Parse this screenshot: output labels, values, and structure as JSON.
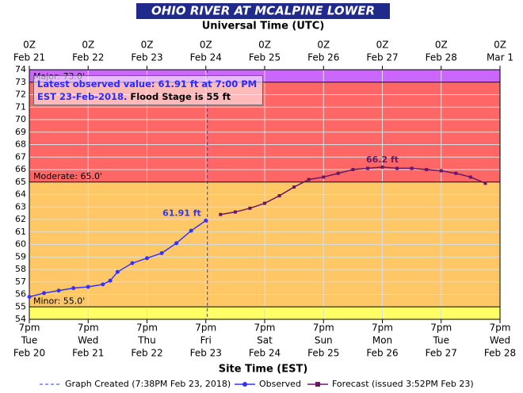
{
  "chart_data": {
    "type": "line",
    "title": "OHIO RIVER AT MCALPINE LOWER",
    "x2label": "Universal Time (UTC)",
    "xlabel": "Site Time (EST)",
    "xlim": [
      "2018-02-20T19:00",
      "2018-02-28T19:00"
    ],
    "xticks": [
      {
        "value": "2018-02-20T19:00",
        "label": [
          "7pm",
          "Tue",
          "Feb 20"
        ]
      },
      {
        "value": "2018-02-21T19:00",
        "label": [
          "7pm",
          "Wed",
          "Feb 21"
        ]
      },
      {
        "value": "2018-02-22T19:00",
        "label": [
          "7pm",
          "Thu",
          "Feb 22"
        ]
      },
      {
        "value": "2018-02-23T19:00",
        "label": [
          "7pm",
          "Fri",
          "Feb 23"
        ]
      },
      {
        "value": "2018-02-24T19:00",
        "label": [
          "7pm",
          "Sat",
          "Feb 24"
        ]
      },
      {
        "value": "2018-02-25T19:00",
        "label": [
          "7pm",
          "Sun",
          "Feb 25"
        ]
      },
      {
        "value": "2018-02-26T19:00",
        "label": [
          "7pm",
          "Mon",
          "Feb 26"
        ]
      },
      {
        "value": "2018-02-27T19:00",
        "label": [
          "7pm",
          "Tue",
          "Feb 27"
        ]
      },
      {
        "value": "2018-02-28T19:00",
        "label": [
          "7pm",
          "Wed",
          "Feb 28"
        ]
      }
    ],
    "x2ticks": [
      {
        "value": "2018-02-20T19:00",
        "label": [
          "0Z",
          "Feb 21"
        ]
      },
      {
        "value": "2018-02-21T19:00",
        "label": [
          "0Z",
          "Feb 22"
        ]
      },
      {
        "value": "2018-02-22T19:00",
        "label": [
          "0Z",
          "Feb 23"
        ]
      },
      {
        "value": "2018-02-23T19:00",
        "label": [
          "0Z",
          "Feb 24"
        ]
      },
      {
        "value": "2018-02-24T19:00",
        "label": [
          "0Z",
          "Feb 25"
        ]
      },
      {
        "value": "2018-02-25T19:00",
        "label": [
          "0Z",
          "Feb 26"
        ]
      },
      {
        "value": "2018-02-26T19:00",
        "label": [
          "0Z",
          "Feb 27"
        ]
      },
      {
        "value": "2018-02-27T19:00",
        "label": [
          "0Z",
          "Feb 28"
        ]
      },
      {
        "value": "2018-02-28T19:00",
        "label": [
          "0Z",
          "Mar 1"
        ]
      }
    ],
    "ylim": [
      54,
      74
    ],
    "yticks": [
      54,
      55,
      56,
      57,
      58,
      59,
      60,
      61,
      62,
      63,
      64,
      65,
      66,
      67,
      68,
      69,
      70,
      71,
      72,
      73,
      74
    ],
    "grid": true,
    "below_color": "#ffff66",
    "flood_categories": [
      {
        "label": "Minor: 55.0'",
        "value": 55,
        "color": "#ffc766"
      },
      {
        "label": "Moderate: 65.0'",
        "value": 65,
        "color": "#ff6666"
      },
      {
        "label": "Major: 73.0'",
        "value": 73,
        "color": "#cc66ff"
      }
    ],
    "series": [
      {
        "name": "Observed",
        "color": "#3333ff",
        "marker": "circle",
        "x": [
          "2018-02-20T19:00",
          "2018-02-21T01:00",
          "2018-02-21T07:00",
          "2018-02-21T13:00",
          "2018-02-21T19:00",
          "2018-02-22T01:00",
          "2018-02-22T04:00",
          "2018-02-22T07:00",
          "2018-02-22T13:00",
          "2018-02-22T19:00",
          "2018-02-23T01:00",
          "2018-02-23T07:00",
          "2018-02-23T13:00",
          "2018-02-23T19:00"
        ],
        "values": [
          55.8,
          56.1,
          56.3,
          56.5,
          56.6,
          56.8,
          57.1,
          57.8,
          58.5,
          58.9,
          59.3,
          60.1,
          61.1,
          61.91
        ],
        "value_labels": [
          null,
          null,
          null,
          null,
          null,
          null,
          null,
          null,
          null,
          null,
          null,
          null,
          null,
          "61.91 ft"
        ]
      },
      {
        "name": "Forecast (issued 3:52PM Feb 23)",
        "color": "#661a66",
        "marker": "square",
        "x": [
          "2018-02-24T01:00",
          "2018-02-24T07:00",
          "2018-02-24T13:00",
          "2018-02-24T19:00",
          "2018-02-25T01:00",
          "2018-02-25T07:00",
          "2018-02-25T13:00",
          "2018-02-25T19:00",
          "2018-02-26T01:00",
          "2018-02-26T07:00",
          "2018-02-26T13:00",
          "2018-02-26T19:00",
          "2018-02-27T01:00",
          "2018-02-27T07:00",
          "2018-02-27T13:00",
          "2018-02-27T19:00",
          "2018-02-28T01:00",
          "2018-02-28T07:00",
          "2018-02-28T13:00"
        ],
        "values": [
          62.4,
          62.6,
          62.9,
          63.3,
          63.9,
          64.6,
          65.2,
          65.4,
          65.7,
          66.0,
          66.1,
          66.2,
          66.1,
          66.1,
          66.0,
          65.9,
          65.7,
          65.4,
          64.9
        ],
        "value_labels": [
          null,
          null,
          null,
          null,
          null,
          null,
          null,
          null,
          null,
          null,
          null,
          "66.2 ft",
          null,
          null,
          null,
          null,
          null,
          null,
          null
        ]
      }
    ],
    "graph_created": {
      "name": "Graph Created (7:38PM Feb 23, 2018)",
      "x": "2018-02-23T19:38",
      "color": "#3333ff"
    },
    "annotation": {
      "observed": "Latest observed value: 61.91 ft at 7:00 PM EST 23-Feb-2018.",
      "flood": "Flood Stage is 55 ft"
    }
  }
}
